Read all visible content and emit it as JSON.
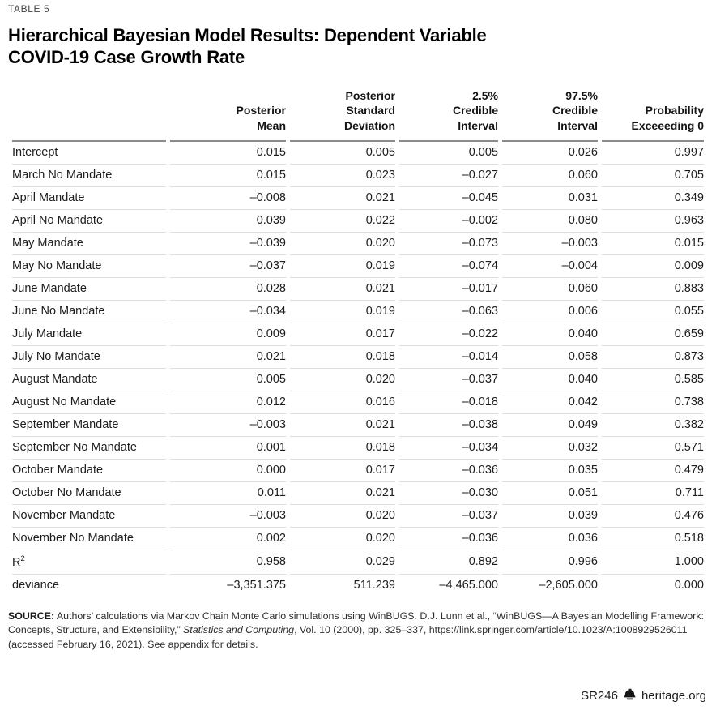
{
  "page": {
    "kicker": "TABLE 5",
    "title": "Hierarchical Bayesian Model Results: Dependent Variable\nCOVID-19 Case Growth Rate"
  },
  "table": {
    "column_headers": [
      "Posterior\nMean",
      "Posterior\nStandard\nDeviation",
      "2.5%\nCredible\nInterval",
      "97.5%\nCredible\nInterval",
      "Probability\nExceeeding 0"
    ],
    "rows": [
      {
        "label": "Intercept",
        "values": [
          "0.015",
          "0.005",
          "0.005",
          "0.026",
          "0.997"
        ]
      },
      {
        "label": "March No Mandate",
        "values": [
          "0.015",
          "0.023",
          "–0.027",
          "0.060",
          "0.705"
        ]
      },
      {
        "label": "April Mandate",
        "values": [
          "–0.008",
          "0.021",
          "–0.045",
          "0.031",
          "0.349"
        ]
      },
      {
        "label": "April No Mandate",
        "values": [
          "0.039",
          "0.022",
          "–0.002",
          "0.080",
          "0.963"
        ]
      },
      {
        "label": "May Mandate",
        "values": [
          "–0.039",
          "0.020",
          "–0.073",
          "–0.003",
          "0.015"
        ]
      },
      {
        "label": "May No Mandate",
        "values": [
          "–0.037",
          "0.019",
          "–0.074",
          "–0.004",
          "0.009"
        ]
      },
      {
        "label": "June Mandate",
        "values": [
          "0.028",
          "0.021",
          "–0.017",
          "0.060",
          "0.883"
        ]
      },
      {
        "label": "June No Mandate",
        "values": [
          "–0.034",
          "0.019",
          "–0.063",
          "0.006",
          "0.055"
        ]
      },
      {
        "label": "July Mandate",
        "values": [
          "0.009",
          "0.017",
          "–0.022",
          "0.040",
          "0.659"
        ]
      },
      {
        "label": "July No Mandate",
        "values": [
          "0.021",
          "0.018",
          "–0.014",
          "0.058",
          "0.873"
        ]
      },
      {
        "label": "August Mandate",
        "values": [
          "0.005",
          "0.020",
          "–0.037",
          "0.040",
          "0.585"
        ]
      },
      {
        "label": "August No Mandate",
        "values": [
          "0.012",
          "0.016",
          "–0.018",
          "0.042",
          "0.738"
        ]
      },
      {
        "label": "September Mandate",
        "values": [
          "–0.003",
          "0.021",
          "–0.038",
          "0.049",
          "0.382"
        ]
      },
      {
        "label": "September No Mandate",
        "values": [
          "0.001",
          "0.018",
          "–0.034",
          "0.032",
          "0.571"
        ]
      },
      {
        "label": "October Mandate",
        "values": [
          "0.000",
          "0.017",
          "–0.036",
          "0.035",
          "0.479"
        ]
      },
      {
        "label": "October No Mandate",
        "values": [
          "0.011",
          "0.021",
          "–0.030",
          "0.051",
          "0.711"
        ]
      },
      {
        "label": "November Mandate",
        "values": [
          "–0.003",
          "0.020",
          "–0.037",
          "0.039",
          "0.476"
        ]
      },
      {
        "label": "November No Mandate",
        "values": [
          "0.002",
          "0.020",
          "–0.036",
          "0.036",
          "0.518"
        ]
      },
      {
        "label": "R",
        "label_sup": "2",
        "values": [
          "0.958",
          "0.029",
          "0.892",
          "0.996",
          "1.000"
        ]
      },
      {
        "label": "deviance",
        "values": [
          "–3,351.375",
          "511.239",
          "–4,465.000",
          "–2,605.000",
          "0.000"
        ]
      }
    ]
  },
  "source_note": {
    "label": "SOURCE:",
    "text_before_italic": " Authors’ calculations via Markov Chain Monte Carlo simulations using WinBUGS. D.J. Lunn et al., “WinBUGS—A Bayesian Modelling Framework: Concepts, Structure, and Extensibility,” ",
    "italic_text": "Statistics and Computing",
    "text_after_italic": ", Vol. 10 (2000), pp. 325–337, https://link.springer.com/article/10.1023/A:1008929526011 (accessed February 16, 2021). See appendix for details."
  },
  "footer": {
    "report_id": "SR246",
    "site": "heritage.org",
    "logo_icon": "liberty-bell-icon"
  },
  "colors": {
    "header_rule": "#8a8a8a",
    "row_rule": "#dedede",
    "text": "#1c1c1c"
  }
}
